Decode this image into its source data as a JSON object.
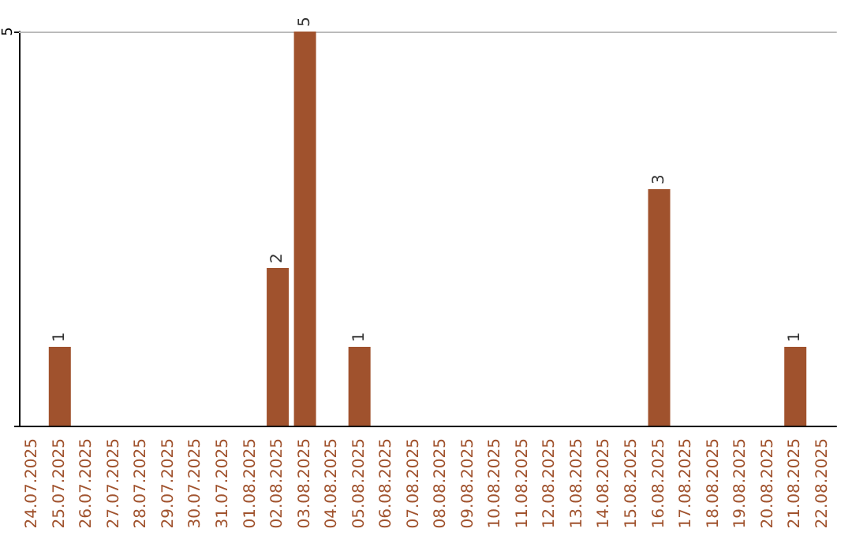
{
  "chart_data": {
    "type": "bar",
    "categories": [
      "24.07.2025",
      "25.07.2025",
      "26.07.2025",
      "27.07.2025",
      "28.07.2025",
      "29.07.2025",
      "30.07.2025",
      "31.07.2025",
      "01.08.2025",
      "02.08.2025",
      "03.08.2025",
      "04.08.2025",
      "05.08.2025",
      "06.08.2025",
      "07.08.2025",
      "08.08.2025",
      "09.08.2025",
      "10.08.2025",
      "11.08.2025",
      "12.08.2025",
      "13.08.2025",
      "14.08.2025",
      "15.08.2025",
      "16.08.2025",
      "17.08.2025",
      "18.08.2025",
      "19.08.2025",
      "20.08.2025",
      "21.08.2025",
      "22.08.2025"
    ],
    "values": [
      null,
      1,
      null,
      null,
      null,
      null,
      null,
      null,
      null,
      2,
      5,
      null,
      1,
      null,
      null,
      null,
      null,
      null,
      null,
      null,
      null,
      null,
      null,
      3,
      null,
      null,
      null,
      null,
      1,
      null
    ],
    "color": "#a0522d",
    "ylim": [
      0,
      5
    ],
    "yticks": [
      5
    ],
    "data_labels": true
  }
}
